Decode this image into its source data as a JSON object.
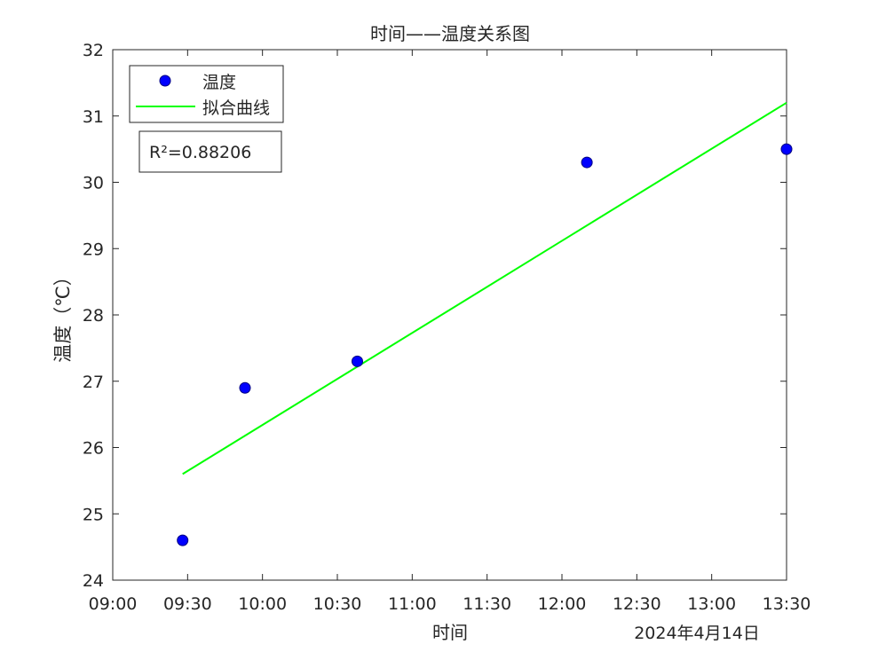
{
  "chart_data": {
    "type": "scatter",
    "title": "时间——温度关系图",
    "xlabel": "时间",
    "ylabel": "温度（℃）",
    "date_label": "2024年4月14日",
    "xlim": [
      "09:00",
      "13:30"
    ],
    "ylim": [
      24,
      32
    ],
    "x_ticks": [
      "09:00",
      "09:30",
      "10:00",
      "10:30",
      "11:00",
      "11:30",
      "12:00",
      "12:30",
      "13:00",
      "13:30"
    ],
    "y_ticks": [
      24,
      25,
      26,
      27,
      28,
      29,
      30,
      31,
      32
    ],
    "grid": false,
    "legend_position": "top-left",
    "series": [
      {
        "name": "温度",
        "kind": "markers",
        "color": "#0000ff",
        "points": [
          {
            "x": "09:28",
            "y": 24.6
          },
          {
            "x": "09:53",
            "y": 26.9
          },
          {
            "x": "10:38",
            "y": 27.3
          },
          {
            "x": "12:10",
            "y": 30.3
          },
          {
            "x": "13:30",
            "y": 30.5
          }
        ]
      },
      {
        "name": "拟合曲线",
        "kind": "line",
        "color": "#00ff00",
        "points": [
          {
            "x": "09:28",
            "y": 25.6
          },
          {
            "x": "13:30",
            "y": 31.2
          }
        ]
      }
    ],
    "annotation": "R²=0.88206"
  }
}
